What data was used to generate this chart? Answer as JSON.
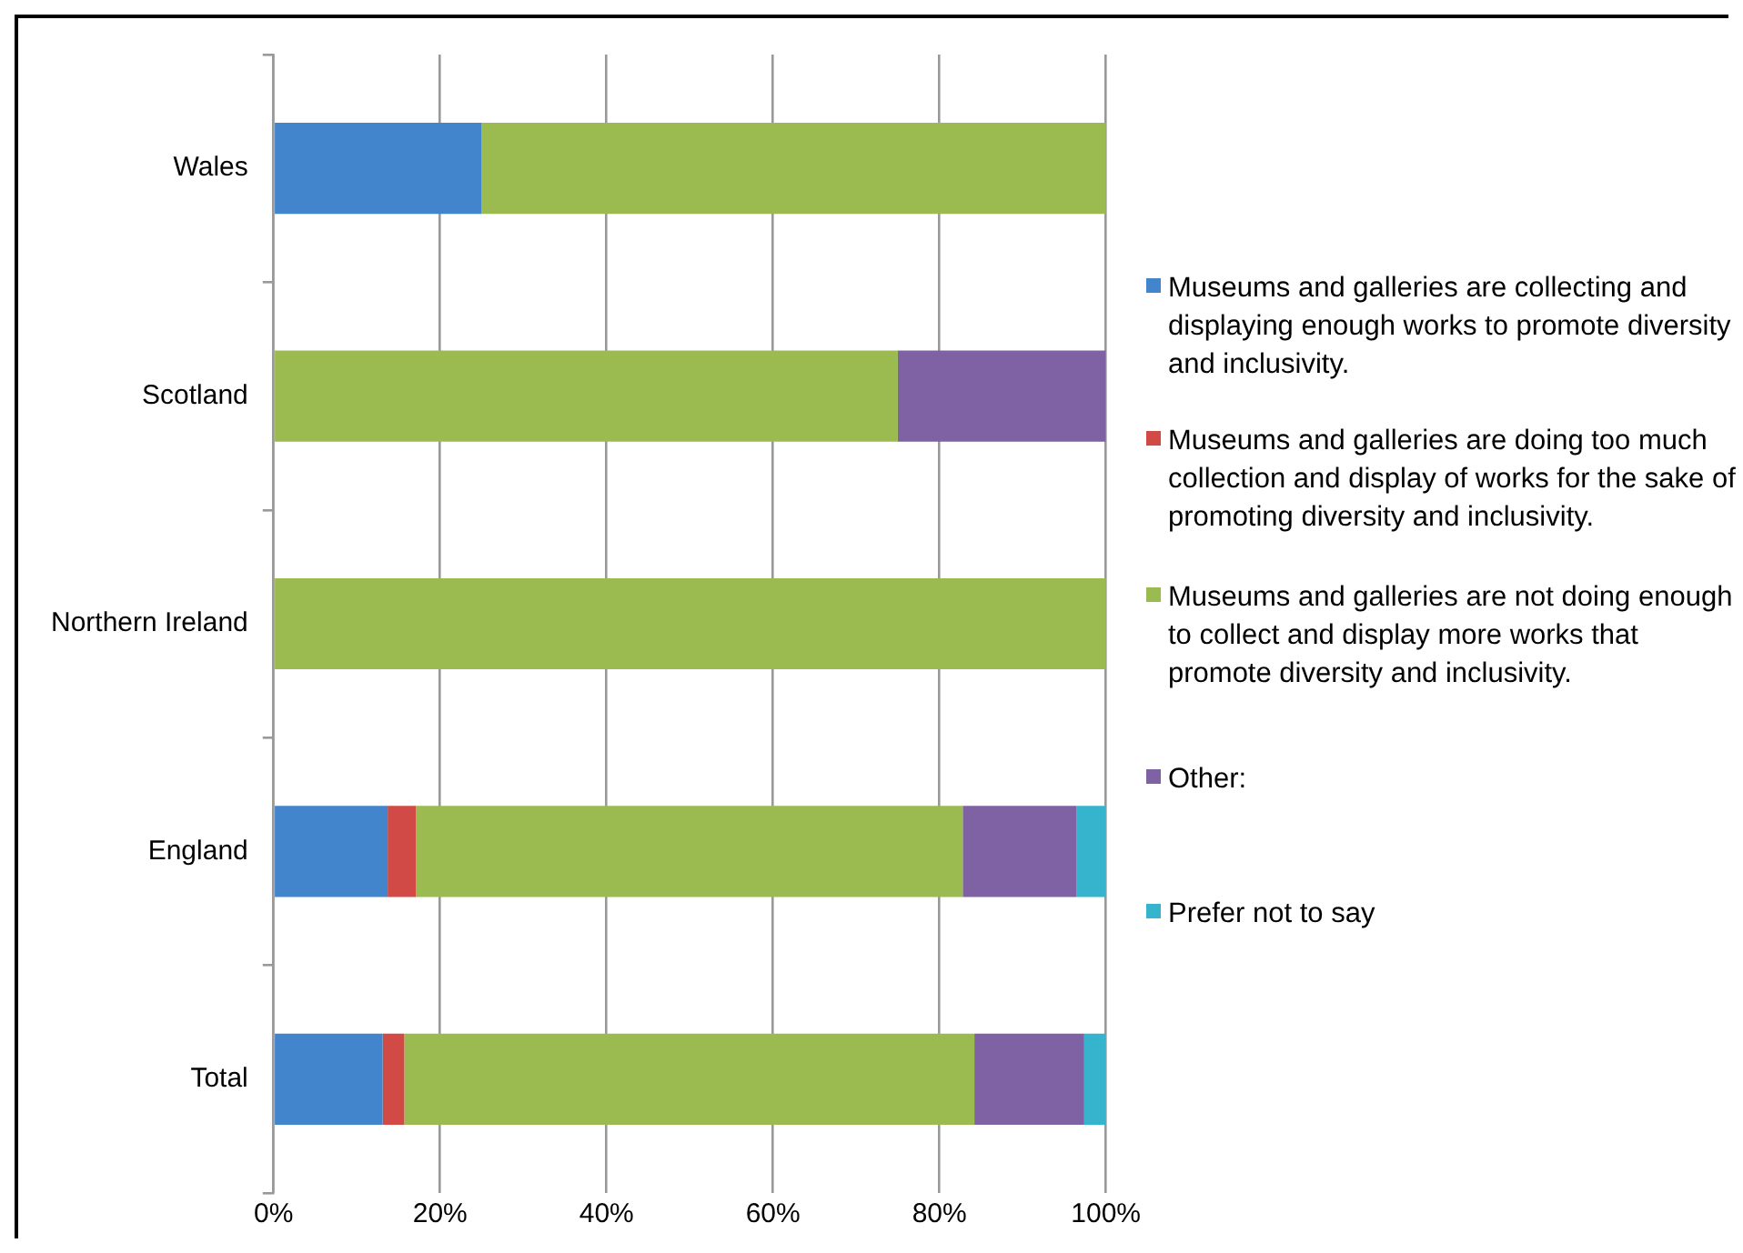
{
  "chart_data": {
    "type": "bar",
    "orientation": "horizontal",
    "stacked": true,
    "categories": [
      "Wales",
      "Scotland",
      "Northern Ireland",
      "England",
      "Total"
    ],
    "series": [
      {
        "name": "Museums and galleries are collecting and displaying enough works to promote diversity and inclusivity.",
        "color": "#4285cc",
        "values": [
          25,
          0,
          0,
          13.7,
          13.1
        ]
      },
      {
        "name": "Museums and galleries are doing too much collection and display of works for the sake of promoting diversity and inclusivity.",
        "color": "#d24a45",
        "values": [
          0,
          0,
          0,
          3.4,
          2.6
        ]
      },
      {
        "name": "Museums and galleries are not doing enough to collect and display more works that promote diversity and inclusivity.",
        "color": "#9bbb50",
        "values": [
          75,
          75,
          100,
          65.7,
          68.5
        ]
      },
      {
        "name": "Other:",
        "color": "#7f62a4",
        "values": [
          0,
          25,
          0,
          13.7,
          13.2
        ]
      },
      {
        "name": "Prefer not to say",
        "color": "#36b3cd",
        "values": [
          0,
          0,
          0,
          3.5,
          2.6
        ]
      }
    ],
    "xlim": [
      0,
      100
    ],
    "xticks": [
      {
        "value": 0,
        "label": "0%"
      },
      {
        "value": 20,
        "label": "20%"
      },
      {
        "value": 40,
        "label": "40%"
      },
      {
        "value": 60,
        "label": "60%"
      },
      {
        "value": 80,
        "label": "80%"
      },
      {
        "value": 100,
        "label": "100%"
      }
    ],
    "grid": "x",
    "legend": "right"
  }
}
